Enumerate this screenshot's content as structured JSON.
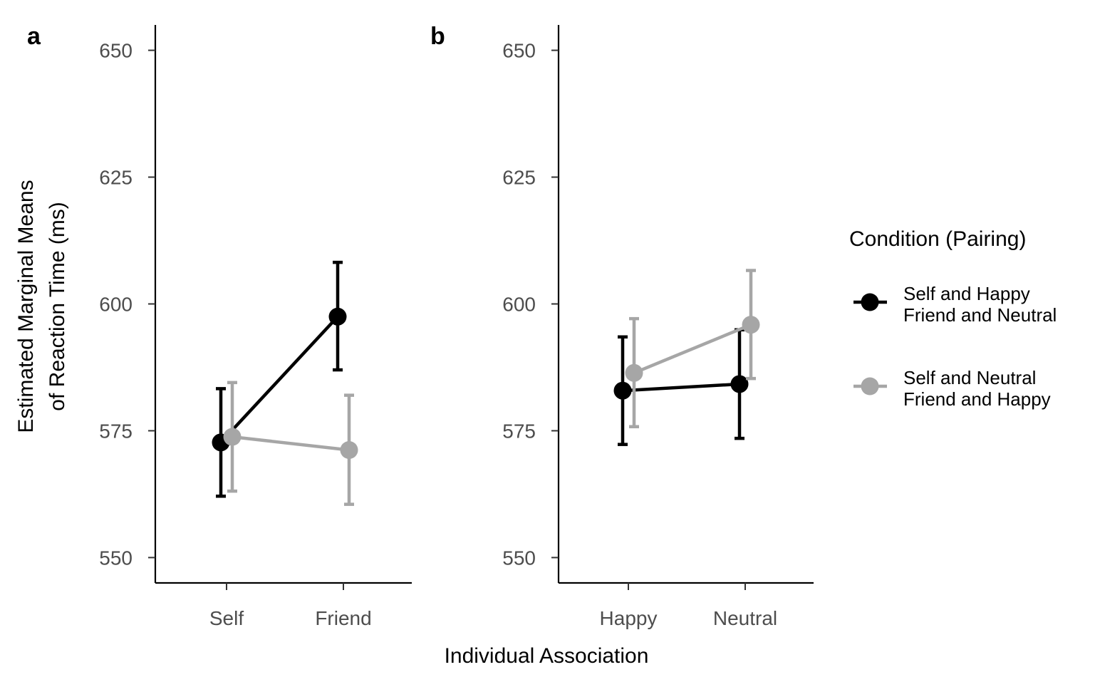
{
  "chart_data": [
    {
      "type": "line",
      "panel_label": "a",
      "categories": [
        "Self",
        "Friend"
      ],
      "ylabel_lines": [
        "Estimated Marginal Means",
        "of Reaction Time (ms)"
      ],
      "ylim": [
        545,
        655
      ],
      "yticks": [
        "550",
        "575",
        "600",
        "625",
        "650"
      ],
      "ytick_values": [
        550,
        575,
        600,
        625,
        650
      ],
      "error_bars": true,
      "series": [
        {
          "name_lines": [
            "Self and Happy",
            "Friend and Neutral"
          ],
          "color": "#000000",
          "values": [
            572.7,
            597.5
          ],
          "lower": [
            562.1,
            587.0
          ],
          "upper": [
            583.3,
            608.2
          ]
        },
        {
          "name_lines": [
            "Self and Neutral",
            "Friend and Happy"
          ],
          "color": "#a6a6a6",
          "values": [
            573.8,
            571.2
          ],
          "lower": [
            563.1,
            560.5
          ],
          "upper": [
            584.5,
            582.0
          ]
        }
      ]
    },
    {
      "type": "line",
      "panel_label": "b",
      "categories": [
        "Happy",
        "Neutral"
      ],
      "ylim": [
        545,
        655
      ],
      "yticks": [
        "550",
        "575",
        "600",
        "625",
        "650"
      ],
      "ytick_values": [
        550,
        575,
        600,
        625,
        650
      ],
      "error_bars": true,
      "series": [
        {
          "name_lines": [
            "Self and Happy",
            "Friend and Neutral"
          ],
          "color": "#000000",
          "values": [
            582.9,
            584.2
          ],
          "lower": [
            572.3,
            573.5
          ],
          "upper": [
            593.5,
            594.9
          ]
        },
        {
          "name_lines": [
            "Self and Neutral",
            "Friend and Happy"
          ],
          "color": "#a6a6a6",
          "values": [
            586.4,
            595.9
          ],
          "lower": [
            575.8,
            585.3
          ],
          "upper": [
            597.1,
            606.6
          ]
        }
      ]
    }
  ],
  "shared_xlabel": "Individual Association",
  "legend": {
    "title": "Condition (Pairing)",
    "placement": "right",
    "items": [
      {
        "lines": [
          "Self and Happy",
          "Friend and Neutral"
        ],
        "color": "#000000"
      },
      {
        "lines": [
          "Self and Neutral",
          "Friend and Happy"
        ],
        "color": "#a6a6a6"
      }
    ]
  }
}
